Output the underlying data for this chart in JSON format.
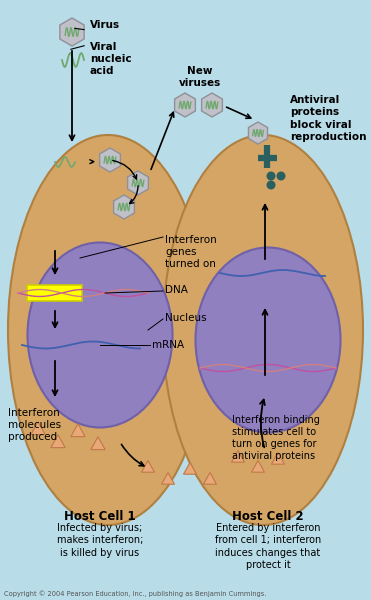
{
  "bg_color": "#b8dce8",
  "cell_outer_color": "#d4a565",
  "cell_inner_color": "#9080c0",
  "cell_edge_color": "#b08040",
  "nucleus_edge_color": "#7060a8",
  "dna_color1": "#c050a0",
  "dna_color2": "#d08080",
  "mrna_color": "#4060b0",
  "mrna_color2": "#4060b0",
  "virus_face": "#c0c0c8",
  "virus_edge": "#909098",
  "virus_squiggle": "#70a870",
  "yellow_highlight": "#ffff00",
  "yellow_edge": "#cccc00",
  "interferon_face": "#e8a878",
  "interferon_edge": "#c07848",
  "antiviral_color": "#2a6060",
  "copyright": "Copyright © 2004 Pearson Education, Inc., publishing as Benjamin Cummings.",
  "label_virus": "Virus",
  "label_viral_nucleic": "Viral\nnucleic\nacid",
  "label_new_viruses": "New\nviruses",
  "label_interferon_genes": "Interferon\ngenes\nturned on",
  "label_dna": "DNA",
  "label_nucleus": "Nucleus",
  "label_mrna": "mRNA",
  "label_interferon_molecules": "Interferon\nmolecules\nproduced",
  "label_antiviral": "Antiviral\nproteins\nblock viral\nreproduction",
  "label_interferon_binding": "Interferon binding\nstimulates cell to\nturn on genes for\nantiviral proteins",
  "host_cell1_label": "Host Cell 1",
  "host_cell1_desc": "Infected by virus;\nmakes interferon;\nis killed by virus",
  "host_cell2_label": "Host Cell 2",
  "host_cell2_desc": "Entered by interferon\nfrom cell 1; interferon\ninduces changes that\nprotect it"
}
